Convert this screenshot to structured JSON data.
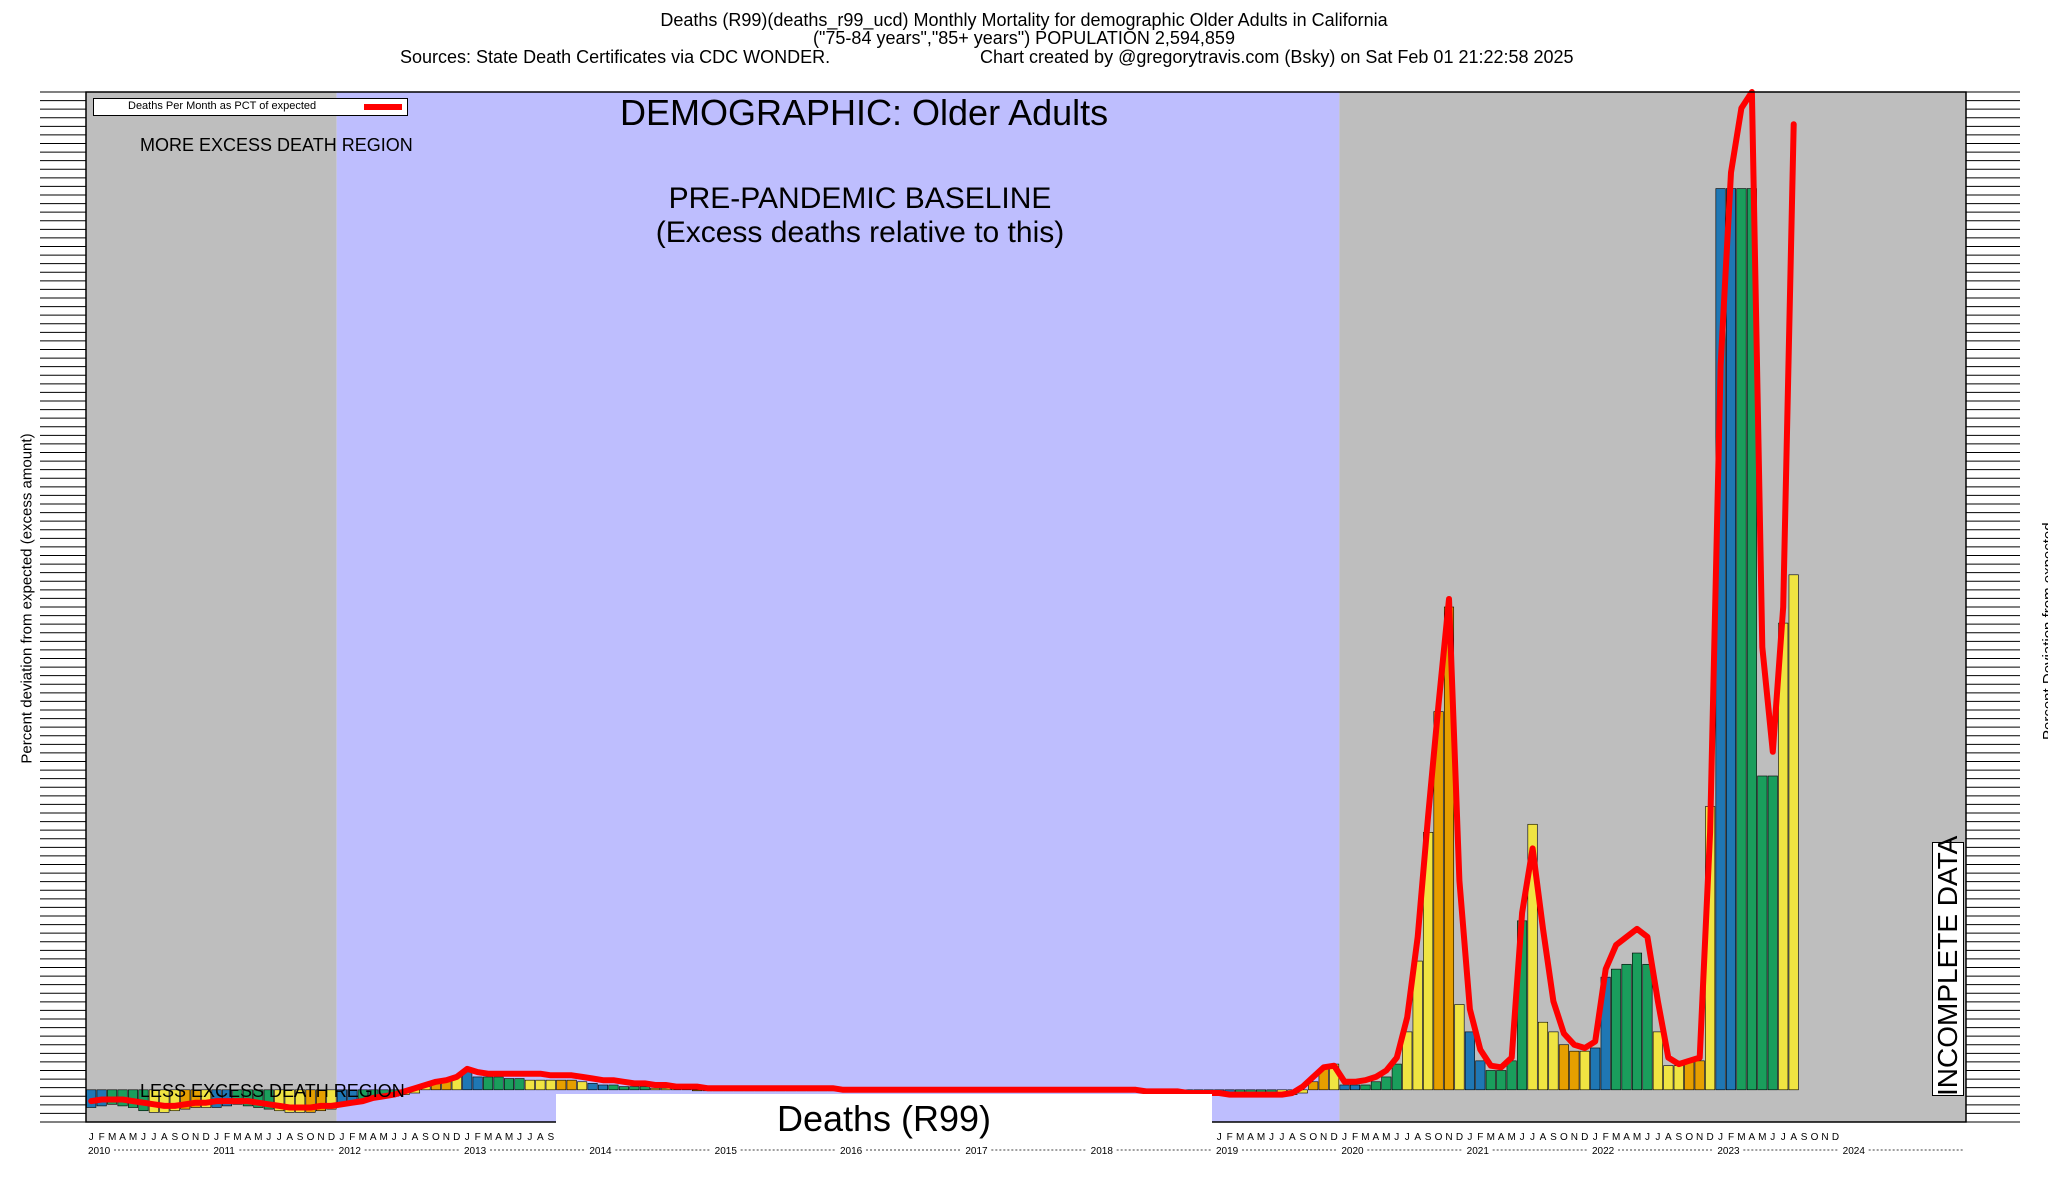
{
  "header": {
    "line1": "Deaths (R99)(deaths_r99_ucd) Monthly Mortality for demographic Older Adults in California",
    "line2": "(\"75-84 years\",\"85+ years\") POPULATION 2,594,859",
    "line3a": "Sources: State Death Certificates via CDC WONDER.",
    "line3b": "Chart created by @gregorytravis.com (Bsky) on Sat Feb 01 21:22:58 2025"
  },
  "axes": {
    "ylabel_left": "Percent deviation from expected (excess amount)",
    "ylabel_right": "Percent Deviation from expected"
  },
  "overlay": {
    "legend_label": "Deaths Per Month as PCT of expected",
    "demographic": "DEMOGRAPHIC: Older Adults",
    "more_region": "MORE EXCESS DEATH REGION",
    "less_region": "LESS EXCESS DEATH REGION",
    "baseline_1": "PRE-PANDEMIC BASELINE",
    "baseline_2": "(Excess deaths relative to this)",
    "cause_box": "Deaths (R99)",
    "incomplete": "INCOMPLETE DATA"
  },
  "colors": {
    "grey_region": "#bebebe",
    "baseline_region": "#bebefe",
    "line": "#ff0000",
    "bar_blue": "#1f77b4",
    "bar_green": "#1a9e5c",
    "bar_yellow": "#f0e442",
    "bar_orange": "#e69f00"
  },
  "chart_data": {
    "type": "bar",
    "title": "Deaths (R99)(deaths_r99_ucd) Monthly Mortality for demographic Older Adults in California",
    "xlabel": "",
    "ylabel": "Percent deviation from expected (excess amount)",
    "month_letters": [
      "J",
      "F",
      "M",
      "A",
      "M",
      "J",
      "J",
      "A",
      "S",
      "O",
      "N",
      "D"
    ],
    "years": [
      "2010",
      "2011",
      "2012",
      "2013",
      "2014",
      "2015",
      "2016",
      "2017",
      "2018",
      "2019",
      "2020",
      "2021",
      "2022",
      "2023",
      "2024"
    ],
    "start": "2010-01",
    "baseline_period": [
      "2012-01",
      "2019-12"
    ],
    "incomplete_from": "2024-04",
    "legend": [
      {
        "name": "Deaths Per Month as PCT of expected",
        "color": "#ff0000"
      }
    ],
    "series_note": "bars = monthly value relative to baseline; line = smoothed trend",
    "values": [
      -11,
      -10,
      -9,
      -10,
      -11,
      -13,
      -14,
      -14,
      -13,
      -12,
      -11,
      -11,
      -11,
      -10,
      -9,
      -10,
      -11,
      -12,
      -13,
      -14,
      -14,
      -14,
      -13,
      -12,
      -10,
      -8,
      -6,
      -5,
      -5,
      -4,
      -3,
      -2,
      2,
      4,
      6,
      8,
      12,
      8,
      8,
      8,
      7,
      7,
      6,
      6,
      6,
      6,
      6,
      5,
      4,
      3,
      3,
      2,
      2,
      2,
      1,
      1,
      1,
      1,
      0,
      0,
      0,
      0,
      0,
      0,
      0,
      0,
      0,
      0,
      0,
      0,
      0,
      0,
      0,
      0,
      0,
      0,
      0,
      0,
      0,
      0,
      0,
      0,
      0,
      0,
      0,
      0,
      0,
      0,
      0,
      0,
      0,
      0,
      0,
      0,
      0,
      0,
      0,
      0,
      0,
      0,
      0,
      0,
      0,
      0,
      0,
      -1,
      -1,
      -2,
      -2,
      -2,
      -3,
      -3,
      -3,
      -3,
      -3,
      -3,
      -2,
      5,
      13,
      16,
      3,
      3,
      3,
      5,
      8,
      16,
      36,
      80,
      160,
      235,
      300,
      53,
      36,
      18,
      12,
      12,
      18,
      105,
      165,
      42,
      36,
      28,
      24,
      24,
      26,
      70,
      75,
      78,
      85,
      78,
      36,
      15,
      15,
      18,
      18,
      176,
      560,
      560,
      560,
      560,
      195,
      195,
      290,
      320
    ],
    "trend": [
      -7,
      -6,
      -6,
      -6,
      -7,
      -8,
      -9,
      -10,
      -10,
      -9,
      -8,
      -8,
      -7,
      -7,
      -7,
      -7,
      -8,
      -9,
      -10,
      -11,
      -11,
      -11,
      -10,
      -10,
      -9,
      -8,
      -7,
      -5,
      -4,
      -3,
      -1,
      1,
      3,
      5,
      6,
      8,
      13,
      11,
      10,
      10,
      10,
      10,
      10,
      10,
      9,
      9,
      9,
      8,
      7,
      6,
      6,
      5,
      4,
      4,
      3,
      3,
      2,
      2,
      2,
      1,
      1,
      1,
      1,
      1,
      1,
      1,
      1,
      1,
      1,
      1,
      1,
      1,
      0,
      0,
      0,
      0,
      0,
      0,
      0,
      0,
      0,
      0,
      0,
      0,
      0,
      0,
      0,
      0,
      0,
      0,
      0,
      0,
      0,
      0,
      0,
      0,
      0,
      0,
      0,
      0,
      0,
      -1,
      -1,
      -1,
      -1,
      -2,
      -2,
      -2,
      -2,
      -3,
      -3,
      -3,
      -3,
      -3,
      -3,
      -2,
      2,
      8,
      14,
      15,
      5,
      5,
      6,
      8,
      12,
      20,
      45,
      95,
      170,
      240,
      305,
      130,
      50,
      25,
      15,
      14,
      20,
      110,
      150,
      100,
      55,
      35,
      28,
      26,
      30,
      75,
      90,
      95,
      100,
      95,
      55,
      20,
      16,
      18,
      20,
      160,
      450,
      570,
      610,
      620,
      275,
      210,
      300,
      600
    ],
    "ylim": [
      -20,
      620
    ]
  }
}
